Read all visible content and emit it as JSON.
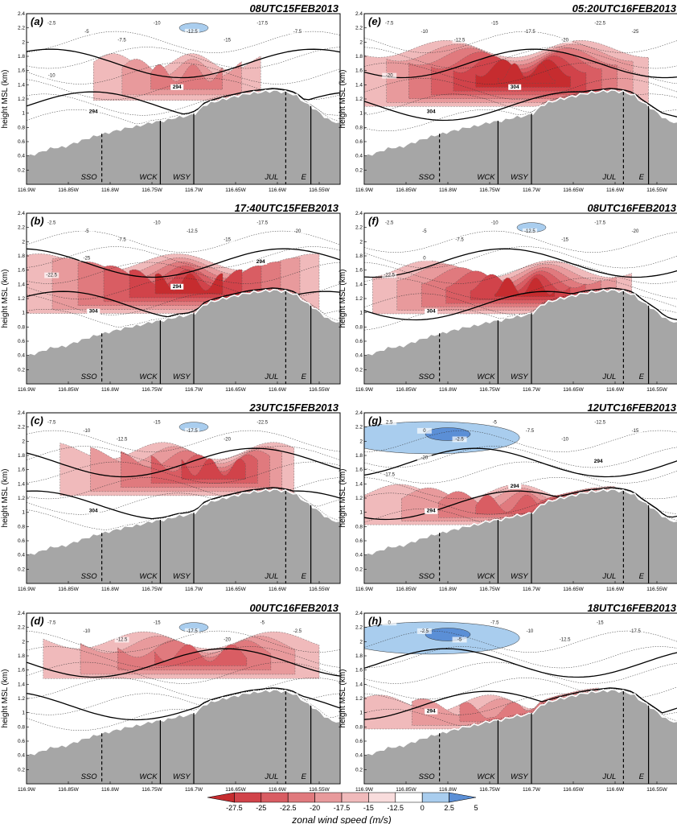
{
  "figure": {
    "ylabel": "height MSL (km)",
    "yticks": [
      "0.2",
      "0.4",
      "0.6",
      "0.8",
      "1",
      "1.2",
      "1.4",
      "1.6",
      "1.8",
      "2",
      "2.2",
      "2.4"
    ],
    "xticks": [
      "116.9W",
      "116.85W",
      "116.8W",
      "116.75W",
      "116.7W",
      "116.65W",
      "116.6W",
      "116.55W"
    ],
    "sites": [
      {
        "label": "SSO",
        "lon": -116.81,
        "line": "dashed"
      },
      {
        "label": "WCK",
        "lon": -116.74,
        "line": "solid"
      },
      {
        "label": "WSY",
        "lon": -116.7,
        "line": "solid"
      },
      {
        "label": "JUL",
        "lon": -116.59,
        "line": "dashed"
      },
      {
        "label": "E",
        "lon": -116.56,
        "line": "solid"
      }
    ],
    "colors": {
      "terrain": "#a6a6a6",
      "contours": "#333333",
      "theta": "#000000",
      "axis": "#000000"
    }
  },
  "chart_data": [
    {
      "type": "heatmap",
      "letter": "(a)",
      "title": "08UTC15FEB2013",
      "theta_labels": [
        "294",
        "294"
      ],
      "contour_labels": [
        "-2.5",
        "-5",
        "-7.5",
        "-10",
        "-12.5",
        "-15",
        "-17.5",
        "-7.5",
        "-10"
      ],
      "min_speed": -17.5,
      "max_speed": 2.5
    },
    {
      "type": "heatmap",
      "letter": "(b)",
      "title": "17:40UTC15FEB2013",
      "theta_labels": [
        "304",
        "294",
        "294"
      ],
      "contour_labels": [
        "-2.5",
        "-5",
        "-7.5",
        "-10",
        "-12.5",
        "-15",
        "-17.5",
        "-20",
        "-22.5",
        "-25"
      ],
      "min_speed": -25,
      "max_speed": 0
    },
    {
      "type": "heatmap",
      "letter": "(c)",
      "title": "23UTC15FEB2013",
      "theta_labels": [
        "304"
      ],
      "contour_labels": [
        "-7.5",
        "-10",
        "-12.5",
        "-15",
        "-17.5",
        "-20",
        "-22.5"
      ],
      "min_speed": -22.5,
      "max_speed": 2.5
    },
    {
      "type": "heatmap",
      "letter": "(d)",
      "title": "00UTC16FEB2013",
      "theta_labels": [],
      "contour_labels": [
        "-7.5",
        "-10",
        "-12.5",
        "-15",
        "-17.5",
        "-20",
        "-5",
        "-2.5"
      ],
      "min_speed": -20,
      "max_speed": 2.5
    },
    {
      "type": "heatmap",
      "letter": "(e)",
      "title": "05:20UTC16FEB2013",
      "theta_labels": [
        "304",
        "304"
      ],
      "contour_labels": [
        "-7.5",
        "-10",
        "-12.5",
        "-15",
        "-17.5",
        "-20",
        "-22.5",
        "-25",
        "-20"
      ],
      "min_speed": -27.5,
      "max_speed": 0
    },
    {
      "type": "heatmap",
      "letter": "(f)",
      "title": "08UTC16FEB2013",
      "theta_labels": [
        "304"
      ],
      "contour_labels": [
        "-2.5",
        "-5",
        "-7.5",
        "-10",
        "-12.5",
        "-15",
        "-17.5",
        "-20",
        "-22.5",
        "0"
      ],
      "min_speed": -22.5,
      "max_speed": 2.5
    },
    {
      "type": "heatmap",
      "letter": "(g)",
      "title": "12UTC16FEB2013",
      "theta_labels": [
        "294",
        "294",
        "294"
      ],
      "contour_labels": [
        "2.5",
        "0",
        "-2.5",
        "-5",
        "-7.5",
        "-10",
        "-12.5",
        "-15",
        "-17.5",
        "-20"
      ],
      "min_speed": -20,
      "max_speed": 5
    },
    {
      "type": "heatmap",
      "letter": "(h)",
      "title": "18UTC16FEB2013",
      "theta_labels": [
        "294"
      ],
      "contour_labels": [
        "0",
        "-2.5",
        "-5",
        "-7.5",
        "-10",
        "-12.5",
        "-15",
        "-17.5"
      ],
      "min_speed": -17.5,
      "max_speed": 5
    }
  ],
  "colorbar": {
    "title": "zonal wind speed (m/s)",
    "ticks": [
      "-27.5",
      "-25",
      "-22.5",
      "-20",
      "-17.5",
      "-15",
      "-12.5",
      "0",
      "2.5",
      "5"
    ],
    "colors": [
      "#c62c2f",
      "#d1434a",
      "#d95d63",
      "#e07a7e",
      "#e89a9c",
      "#f0babb",
      "#f8dcdc",
      "#ffffff",
      "#a9cdee",
      "#5b8fd6"
    ]
  }
}
